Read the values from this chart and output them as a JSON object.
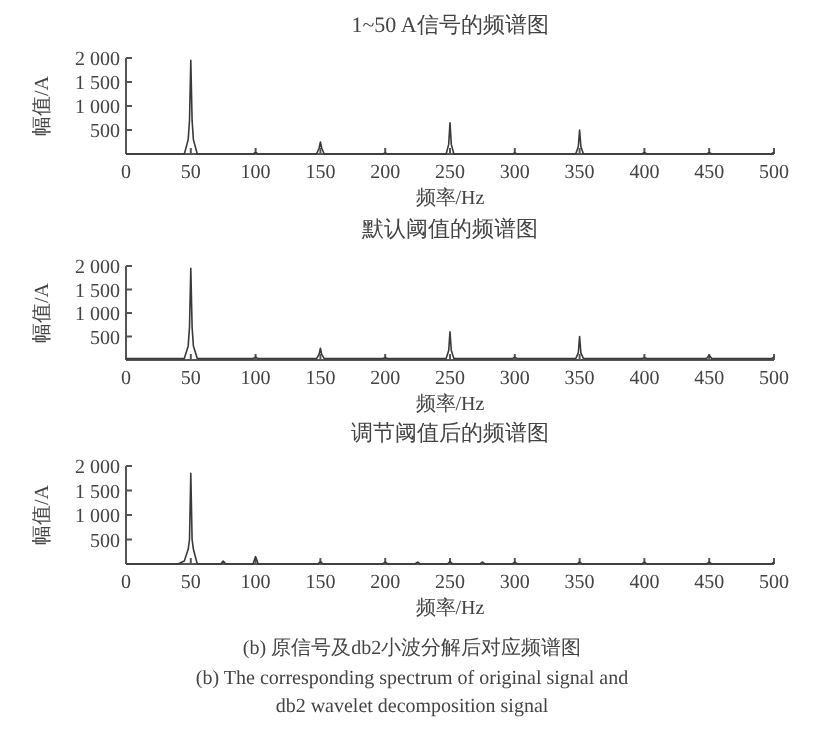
{
  "chart_data": [
    {
      "type": "line",
      "title": "1~50 A信号的频谱图",
      "xlabel": "频率/Hz",
      "ylabel": "幅值/A",
      "xlim": [
        0,
        500
      ],
      "ylim": [
        0,
        2000
      ],
      "xticks": [
        0,
        50,
        100,
        150,
        200,
        250,
        300,
        350,
        400,
        450,
        500
      ],
      "yticks": [
        {
          "value": 500,
          "label": "500"
        },
        {
          "value": 1000,
          "label": "1 000"
        },
        {
          "value": 1500,
          "label": "1 500"
        },
        {
          "value": 2000,
          "label": "2 000"
        }
      ],
      "series": [
        {
          "color": "#3a3a3a",
          "x": [
            0,
            45,
            48,
            49,
            50,
            51,
            52,
            55,
            98,
            100,
            102,
            147,
            149,
            150,
            151,
            153,
            198,
            200,
            202,
            247,
            249,
            250,
            251,
            253,
            298,
            300,
            302,
            347,
            349,
            350,
            351,
            353,
            398,
            400,
            402,
            448,
            450,
            452,
            498,
            500
          ],
          "values": [
            0,
            0,
            300,
            700,
            1950,
            700,
            300,
            0,
            0,
            30,
            0,
            0,
            120,
            250,
            120,
            0,
            0,
            20,
            0,
            0,
            200,
            650,
            200,
            0,
            0,
            20,
            0,
            0,
            150,
            500,
            150,
            0,
            0,
            30,
            0,
            0,
            30,
            0,
            0,
            40
          ]
        }
      ]
    },
    {
      "type": "line",
      "title": "默认阈值的频谱图",
      "xlabel": "频率/Hz",
      "ylabel": "幅值/A",
      "xlim": [
        0,
        500
      ],
      "ylim": [
        0,
        2000
      ],
      "xticks": [
        0,
        50,
        100,
        150,
        200,
        250,
        300,
        350,
        400,
        450,
        500
      ],
      "yticks": [
        {
          "value": 500,
          "label": "500"
        },
        {
          "value": 1000,
          "label": "1 000"
        },
        {
          "value": 1500,
          "label": "1 500"
        },
        {
          "value": 2000,
          "label": "2 000"
        }
      ],
      "series": [
        {
          "color": "#3a3a3a",
          "x": [
            0,
            20,
            45,
            48,
            49,
            50,
            51,
            52,
            55,
            80,
            98,
            100,
            102,
            125,
            147,
            149,
            150,
            151,
            153,
            175,
            198,
            200,
            202,
            225,
            247,
            249,
            250,
            251,
            253,
            275,
            298,
            300,
            302,
            325,
            347,
            349,
            350,
            351,
            353,
            375,
            398,
            400,
            402,
            425,
            448,
            450,
            452,
            475,
            498,
            500
          ],
          "values": [
            30,
            30,
            30,
            300,
            700,
            1950,
            700,
            300,
            30,
            30,
            30,
            60,
            30,
            30,
            30,
            120,
            250,
            120,
            30,
            30,
            30,
            50,
            30,
            30,
            30,
            200,
            600,
            200,
            30,
            30,
            30,
            60,
            30,
            30,
            30,
            150,
            500,
            150,
            30,
            30,
            30,
            50,
            30,
            30,
            30,
            100,
            30,
            30,
            30,
            60
          ]
        }
      ]
    },
    {
      "type": "line",
      "title": "调节阈值后的频谱图",
      "xlabel": "频率/Hz",
      "ylabel": "幅值/A",
      "xlim": [
        0,
        500
      ],
      "ylim": [
        0,
        2000
      ],
      "xticks": [
        0,
        50,
        100,
        150,
        200,
        250,
        300,
        350,
        400,
        450,
        500
      ],
      "yticks": [
        {
          "value": 500,
          "label": "500"
        },
        {
          "value": 1000,
          "label": "1 000"
        },
        {
          "value": 1500,
          "label": "1 500"
        },
        {
          "value": 2000,
          "label": "2 000"
        }
      ],
      "annotations": [
        "(b) 原信号及db2小波分解后对应频谱图",
        "(b) The corresponding spectrum of original signal and db2 wavelet decomposition signal"
      ],
      "series": [
        {
          "color": "#3a3a3a",
          "x": [
            0,
            40,
            45,
            48,
            49,
            50,
            51,
            52,
            55,
            73,
            75,
            77,
            98,
            100,
            102,
            148,
            150,
            152,
            198,
            200,
            202,
            223,
            225,
            227,
            248,
            250,
            252,
            273,
            275,
            277,
            298,
            300,
            302,
            348,
            350,
            352,
            398,
            400,
            402,
            448,
            450,
            452,
            498,
            500
          ],
          "values": [
            0,
            0,
            60,
            300,
            500,
            1850,
            500,
            300,
            0,
            0,
            60,
            0,
            0,
            150,
            0,
            0,
            50,
            0,
            0,
            40,
            0,
            0,
            40,
            0,
            0,
            50,
            0,
            0,
            40,
            0,
            0,
            40,
            0,
            0,
            40,
            0,
            0,
            40,
            0,
            0,
            40,
            0,
            0,
            40
          ]
        }
      ]
    }
  ]
}
